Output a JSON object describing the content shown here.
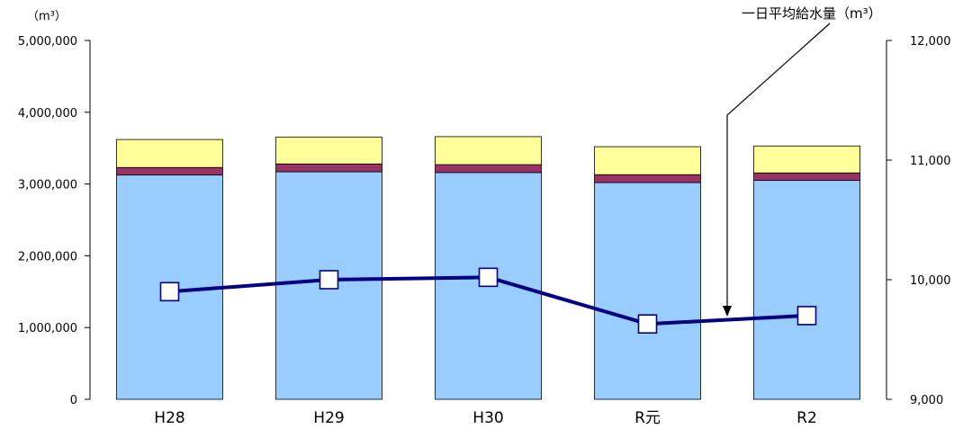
{
  "chart_data": {
    "type": "bar",
    "categories": [
      "H28",
      "H29",
      "H30",
      "R元",
      "R2"
    ],
    "y_left": {
      "unit_label": "（m³）",
      "ylim": [
        0,
        5000000
      ],
      "ticks": [
        0,
        1000000,
        2000000,
        3000000,
        4000000,
        5000000
      ],
      "tick_labels": [
        "0",
        "1,000,000",
        "2,000,000",
        "3,000,000",
        "4,000,000",
        "5,000,000"
      ]
    },
    "y_right": {
      "ylim": [
        9000,
        12000
      ],
      "ticks": [
        9000,
        10000,
        11000,
        12000
      ],
      "tick_labels": [
        "9,000",
        "10,000",
        "11,000",
        "12,000"
      ]
    },
    "series": [
      {
        "type": "bar",
        "stack": "total",
        "color": "#99ccff",
        "values": [
          3125000,
          3170000,
          3160000,
          3020000,
          3050000
        ]
      },
      {
        "type": "bar",
        "stack": "total",
        "color": "#993366",
        "values": [
          105000,
          110000,
          110000,
          110000,
          105000
        ]
      },
      {
        "type": "bar",
        "stack": "total",
        "color": "#ffff99",
        "values": [
          390000,
          375000,
          390000,
          390000,
          375000
        ]
      },
      {
        "type": "line",
        "name": "一日平均給水量（m³）",
        "axis": "right",
        "color": "#000080",
        "values": [
          9900,
          10000,
          10020,
          9630,
          9700
        ]
      }
    ],
    "annotation": "一日平均給水量（m³）",
    "grid": false
  }
}
